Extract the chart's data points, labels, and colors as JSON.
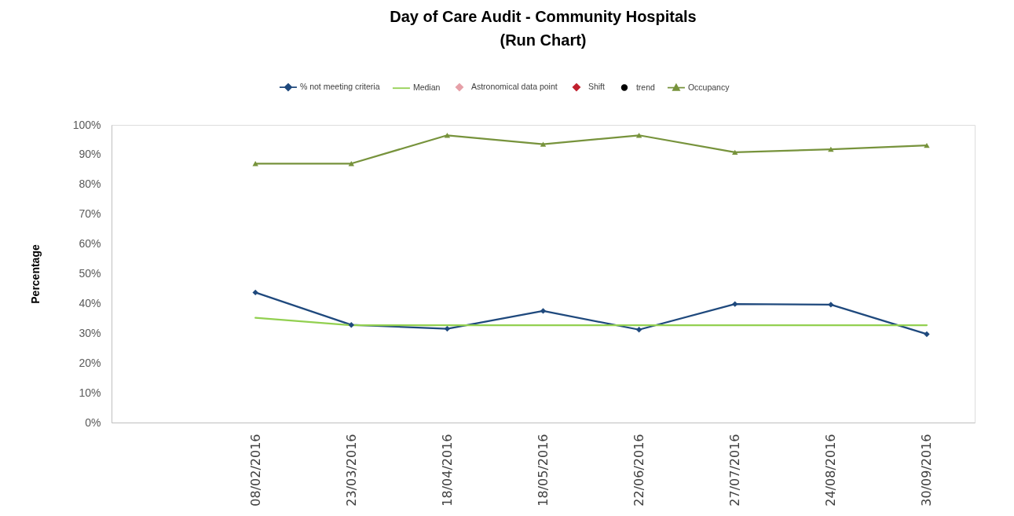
{
  "chart_data": {
    "type": "line",
    "title": "Day of Care Audit - Community Hospitals\n(Run Chart)",
    "ylabel": "Percentage",
    "categories": [
      null,
      "08/02/2016",
      "23/03/2016",
      "18/04/2016",
      "18/05/2016",
      "22/06/2016",
      "27/07/2016",
      "24/08/2016",
      "30/09/2016"
    ],
    "series": [
      {
        "name": "% not meeting criteria",
        "color": "#1f497d",
        "marker": "diamond",
        "values": [
          null,
          43.7,
          32.8,
          31.5,
          37.5,
          31.2,
          39.8,
          39.6,
          29.7
        ]
      },
      {
        "name": "Median",
        "color": "#92d050",
        "marker": "none",
        "values": [
          null,
          35.2,
          32.7,
          32.7,
          32.7,
          32.7,
          32.7,
          32.7,
          32.7
        ]
      },
      {
        "name": "Astronomical data point",
        "type": "scatter",
        "color": "#e6a0a8",
        "marker": "diamond",
        "values": [
          null,
          null,
          null,
          null,
          null,
          null,
          null,
          null,
          null
        ]
      },
      {
        "name": "Shift",
        "type": "scatter",
        "color": "#c0202e",
        "marker": "diamond",
        "values": [
          null,
          null,
          null,
          null,
          null,
          null,
          null,
          null,
          null
        ]
      },
      {
        "name": "trend",
        "type": "scatter",
        "color": "#000000",
        "marker": "circle",
        "values": [
          null,
          null,
          null,
          null,
          null,
          null,
          null,
          null,
          null
        ]
      },
      {
        "name": "Occupancy",
        "color": "#77933c",
        "marker": "triangle",
        "values": [
          null,
          87.0,
          87.0,
          96.5,
          93.5,
          96.5,
          90.8,
          91.8,
          93.1
        ]
      }
    ],
    "ylim": [
      0,
      100
    ],
    "yticks": [
      {
        "value": 0,
        "label": "0%"
      },
      {
        "value": 10,
        "label": "10%"
      },
      {
        "value": 20,
        "label": "20%"
      },
      {
        "value": 30,
        "label": "30%"
      },
      {
        "value": 40,
        "label": "40%"
      },
      {
        "value": 50,
        "label": "50%"
      },
      {
        "value": 60,
        "label": "60%"
      },
      {
        "value": 70,
        "label": "70%"
      },
      {
        "value": 80,
        "label": "80%"
      },
      {
        "value": 90,
        "label": "90%"
      },
      {
        "value": 100,
        "label": "100%"
      }
    ],
    "grid": false,
    "legend": "top"
  }
}
